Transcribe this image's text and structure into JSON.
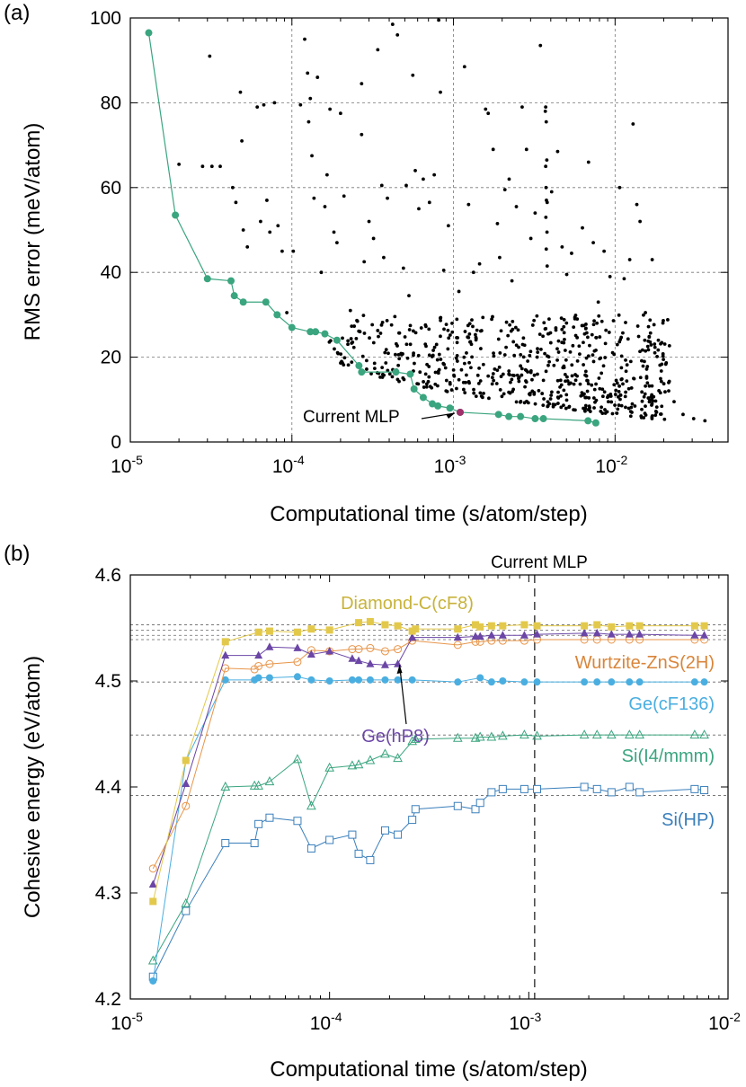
{
  "figure": {
    "panel_a_label": "(a)",
    "panel_b_label": "(b)"
  },
  "chart_data": [
    {
      "panel": "(a)",
      "type": "scatter",
      "xlabel": "Computational time (s/atom/step)",
      "ylabel": "RMS error (meV/atom)",
      "x_scale": "log",
      "xlim": [
        1e-05,
        0.05
      ],
      "ylim": [
        0,
        100
      ],
      "x_tick_labels": [
        {
          "base": "10",
          "exp": "-5"
        },
        {
          "base": "10",
          "exp": "-4"
        },
        {
          "base": "10",
          "exp": "-3"
        },
        {
          "base": "10",
          "exp": "-2"
        }
      ],
      "y_ticks": [
        "0",
        "20",
        "40",
        "60",
        "80",
        "100"
      ],
      "grid": true,
      "annotation": "Current MLP",
      "current_mlp": {
        "x": 0.0011,
        "y": 7.0
      },
      "pareto": [
        [
          1.3e-05,
          96.5
        ],
        [
          1.9e-05,
          53.5
        ],
        [
          3e-05,
          38.5
        ],
        [
          4.2e-05,
          38.0
        ],
        [
          4.4e-05,
          34.5
        ],
        [
          5e-05,
          33.0
        ],
        [
          6.9e-05,
          33.0
        ],
        [
          8.1e-05,
          30.0
        ],
        [
          0.0001,
          27.0
        ],
        [
          0.00013,
          26.0
        ],
        [
          0.00014,
          26.0
        ],
        [
          0.00016,
          25.5
        ],
        [
          0.00019,
          24.0
        ],
        [
          0.00026,
          18.0
        ],
        [
          0.00027,
          16.5
        ],
        [
          0.00044,
          16.5
        ],
        [
          0.00054,
          16.0
        ],
        [
          0.00057,
          12.5
        ],
        [
          0.00065,
          10.5
        ],
        [
          0.00074,
          9.0
        ],
        [
          0.0008,
          8.5
        ],
        [
          0.00095,
          8.0
        ],
        [
          0.0011,
          7.0
        ],
        [
          0.0019,
          6.5
        ],
        [
          0.0022,
          6.0
        ],
        [
          0.0026,
          6.0
        ],
        [
          0.0032,
          5.5
        ],
        [
          0.0036,
          5.5
        ],
        [
          0.0068,
          5.0
        ],
        [
          0.0076,
          4.5
        ]
      ],
      "cloud": {
        "sparse": [
          [
            2e-05,
            65.5
          ],
          [
            2.8e-05,
            65.0
          ],
          [
            3.2e-05,
            65.0
          ],
          [
            3.6e-05,
            65.0
          ],
          [
            3.1e-05,
            91.0
          ],
          [
            4.3e-05,
            60.0
          ],
          [
            4.5e-05,
            56.5
          ],
          [
            4.9e-05,
            71.0
          ],
          [
            4.8e-05,
            82.5
          ],
          [
            5e-05,
            50.0
          ],
          [
            5.3e-05,
            46.0
          ],
          [
            6.1e-05,
            79.0
          ],
          [
            6.4e-05,
            52.0
          ],
          [
            6.7e-05,
            79.5
          ],
          [
            7e-05,
            57.0
          ],
          [
            7.3e-05,
            49.5
          ],
          [
            7.8e-05,
            80.0
          ],
          [
            8.2e-05,
            51.0
          ],
          [
            8.7e-05,
            45.0
          ],
          [
            9.3e-05,
            30.5
          ],
          [
            0.000102,
            45.0
          ],
          [
            0.000113,
            79.5
          ],
          [
            0.00012,
            95.0
          ],
          [
            0.000125,
            87.0
          ],
          [
            0.000127,
            75.5
          ],
          [
            0.00013,
            81.0
          ],
          [
            0.000133,
            67.5
          ],
          [
            0.000137,
            57.5
          ],
          [
            0.000144,
            86.0
          ],
          [
            0.000152,
            40.0
          ],
          [
            0.00016,
            55.5
          ],
          [
            0.000165,
            63.0
          ],
          [
            0.000172,
            78.5
          ],
          [
            0.000182,
            49.5
          ],
          [
            0.00019,
            47.0
          ],
          [
            0.0002,
            77.5
          ],
          [
            0.00021,
            58.0
          ],
          [
            0.00023,
            31.0
          ],
          [
            0.00027,
            84.5
          ],
          [
            0.00027,
            72.5
          ],
          [
            0.00028,
            42.5
          ],
          [
            0.0003,
            52.0
          ],
          [
            0.00032,
            48.0
          ],
          [
            0.00034,
            92.5
          ],
          [
            0.00036,
            60.5
          ],
          [
            0.00037,
            43.5
          ],
          [
            0.00039,
            57.5
          ],
          [
            0.00042,
            98.5
          ],
          [
            0.00045,
            96.0
          ],
          [
            0.00049,
            41.0
          ],
          [
            0.00051,
            60.5
          ],
          [
            0.00053,
            34.5
          ],
          [
            0.00056,
            86.5
          ],
          [
            0.00058,
            64.0
          ],
          [
            0.00061,
            55.0
          ],
          [
            0.00065,
            62.0
          ],
          [
            0.00071,
            56.5
          ],
          [
            0.00076,
            63.0
          ],
          [
            0.00081,
            99.5
          ],
          [
            0.00083,
            82.5
          ],
          [
            0.00087,
            40.5
          ],
          [
            0.00093,
            51.0
          ],
          [
            0.00098,
            28.0
          ],
          [
            0.00108,
            35.5
          ],
          [
            0.00117,
            88.5
          ],
          [
            0.00124,
            56.0
          ],
          [
            0.00133,
            40.0
          ],
          [
            0.00145,
            42.0
          ],
          [
            0.00158,
            78.5
          ],
          [
            0.00164,
            77.5
          ],
          [
            0.00176,
            69.0
          ],
          [
            0.00187,
            51.5
          ],
          [
            0.00193,
            43.5
          ],
          [
            0.00208,
            59.5
          ],
          [
            0.00221,
            62.0
          ],
          [
            0.0023,
            38.0
          ],
          [
            0.00245,
            55.5
          ],
          [
            0.00266,
            79.0
          ],
          [
            0.00283,
            69.0
          ],
          [
            0.00301,
            48.0
          ],
          [
            0.0032,
            54.0
          ],
          [
            0.00345,
            93.5
          ],
          [
            0.00372,
            65.0
          ],
          [
            0.0038,
            56.5
          ],
          [
            0.00405,
            59.0
          ],
          [
            0.00441,
            68.5
          ],
          [
            0.0047,
            46.0
          ],
          [
            0.00502,
            39.5
          ],
          [
            0.00538,
            44.5
          ],
          [
            0.00583,
            29.0
          ],
          [
            0.00628,
            50.5
          ],
          [
            0.00685,
            66.0
          ],
          [
            0.00733,
            47.0
          ],
          [
            0.00787,
            33.0
          ],
          [
            0.00855,
            45.0
          ],
          [
            0.0093,
            39.0
          ],
          [
            0.01067,
            60.0
          ],
          [
            0.01138,
            38.5
          ],
          [
            0.01232,
            43.0
          ],
          [
            0.01292,
            75.0
          ],
          [
            0.01363,
            56.0
          ],
          [
            0.01427,
            52.0
          ],
          [
            0.01541,
            30.5
          ],
          [
            0.01697,
            43.0
          ],
          [
            0.01853,
            24.0
          ],
          [
            0.02146,
            14.0
          ],
          [
            0.02318,
            9.5
          ],
          [
            0.02634,
            6.5
          ],
          [
            0.03064,
            5.5
          ],
          [
            0.03597,
            5.0
          ],
          [
            0.00372,
            79.0
          ],
          [
            0.0037,
            78.0
          ],
          [
            0.00375,
            75.5
          ],
          [
            0.00378,
            66.5
          ],
          [
            0.00374,
            60.0
          ],
          [
            0.00376,
            57.0
          ],
          [
            0.00373,
            53.0
          ],
          [
            0.00379,
            49.5
          ],
          [
            0.00375,
            45.5
          ],
          [
            0.0038,
            41.5
          ]
        ],
        "dense_region": {
          "x_range": [
            0.00016,
            0.022
          ],
          "y_range": [
            4.5,
            30
          ]
        }
      }
    },
    {
      "panel": "(b)",
      "type": "line",
      "xlabel": "Computational time (s/atom/step)",
      "ylabel": "Cohesive energy (eV/atom)",
      "x_scale": "log",
      "xlim": [
        1e-05,
        0.01
      ],
      "ylim": [
        4.2,
        4.6
      ],
      "x_tick_labels": [
        {
          "base": "10",
          "exp": "-5"
        },
        {
          "base": "10",
          "exp": "-4"
        },
        {
          "base": "10",
          "exp": "-3"
        },
        {
          "base": "10",
          "exp": "-2"
        }
      ],
      "y_ticks": [
        "4.2",
        "4.3",
        "4.4",
        "4.5",
        "4.6"
      ],
      "grid": false,
      "annotation": "Current MLP",
      "current_mlp_x": 0.00107,
      "reference_lines": [
        4.553,
        4.548,
        4.543,
        4.539,
        4.499,
        4.449,
        4.392
      ],
      "series": [
        {
          "name": "Diamond-C(cF8)",
          "color": "#e3c94b",
          "label_color": "#c8b33a",
          "marker": "filled-square",
          "x": [
            1.3e-05,
            1.9e-05,
            3e-05,
            4.4e-05,
            5e-05,
            6.9e-05,
            8.1e-05,
            0.0001,
            0.00014,
            0.00016,
            0.00019,
            0.00022,
            0.00026,
            0.00027,
            0.00044,
            0.00054,
            0.00057,
            0.00065,
            0.00074,
            0.00095,
            0.0011,
            0.0019,
            0.0022,
            0.0026,
            0.0032,
            0.0036,
            0.0068,
            0.0076
          ],
          "y": [
            4.292,
            4.425,
            4.537,
            4.546,
            4.547,
            4.546,
            4.549,
            4.548,
            4.555,
            4.556,
            4.553,
            4.552,
            4.547,
            4.549,
            4.549,
            4.553,
            4.551,
            4.552,
            4.552,
            4.553,
            4.552,
            4.552,
            4.553,
            4.551,
            4.552,
            4.552,
            4.552,
            4.552
          ]
        },
        {
          "name": "Wurtzite-ZnS(2H)",
          "color": "#e8954a",
          "label_color": "#d9853a",
          "marker": "open-circle",
          "x": [
            1.3e-05,
            1.9e-05,
            3e-05,
            4.2e-05,
            4.4e-05,
            5e-05,
            6.9e-05,
            8.1e-05,
            0.0001,
            0.00013,
            0.00014,
            0.00016,
            0.00019,
            0.00022,
            0.00026,
            0.00044,
            0.00054,
            0.00057,
            0.00065,
            0.00074,
            0.00095,
            0.0011,
            0.0019,
            0.0022,
            0.0026,
            0.0032,
            0.0036,
            0.0068,
            0.0076
          ],
          "y": [
            4.323,
            4.382,
            4.512,
            4.511,
            4.514,
            4.516,
            4.518,
            4.529,
            4.528,
            4.53,
            4.53,
            4.531,
            4.528,
            4.53,
            4.538,
            4.534,
            4.537,
            4.537,
            4.538,
            4.538,
            4.538,
            4.539,
            4.539,
            4.539,
            4.539,
            4.539,
            4.539,
            4.539,
            4.539
          ]
        },
        {
          "name": "Ge(hP8)",
          "color": "#6b46a6",
          "label_color": "#6b46a6",
          "marker": "filled-triangle",
          "x": [
            1.3e-05,
            1.9e-05,
            3e-05,
            4.4e-05,
            5e-05,
            6.9e-05,
            8.1e-05,
            0.0001,
            0.00013,
            0.00014,
            0.00016,
            0.00019,
            0.00022,
            0.00026,
            0.00044,
            0.00054,
            0.00057,
            0.00065,
            0.00074,
            0.00095,
            0.0011,
            0.0019,
            0.0022,
            0.0026,
            0.0032,
            0.0036,
            0.0068,
            0.0076
          ],
          "y": [
            4.308,
            4.403,
            4.524,
            4.524,
            4.532,
            4.531,
            4.525,
            4.528,
            4.521,
            4.519,
            4.516,
            4.515,
            4.516,
            4.541,
            4.541,
            4.542,
            4.542,
            4.543,
            4.543,
            4.543,
            4.544,
            4.545,
            4.545,
            4.544,
            4.544,
            4.544,
            4.543,
            4.543
          ]
        },
        {
          "name": "Ge(cF136)",
          "color": "#4aaee0",
          "label_color": "#4aaee0",
          "marker": "filled-circle",
          "x": [
            1.3e-05,
            1.9e-05,
            3e-05,
            4.2e-05,
            4.4e-05,
            5e-05,
            6.9e-05,
            8.1e-05,
            0.0001,
            0.00013,
            0.00014,
            0.00016,
            0.00019,
            0.00022,
            0.00026,
            0.00044,
            0.00057,
            0.00065,
            0.00074,
            0.00095,
            0.0011,
            0.0019,
            0.0022,
            0.0026,
            0.0032,
            0.0036,
            0.0068,
            0.0076
          ],
          "y": [
            4.217,
            4.425,
            4.501,
            4.501,
            4.503,
            4.503,
            4.504,
            4.501,
            4.5,
            4.501,
            4.501,
            4.501,
            4.501,
            4.501,
            4.501,
            4.499,
            4.503,
            4.499,
            4.5,
            4.499,
            4.499,
            4.499,
            4.499,
            4.499,
            4.499,
            4.499,
            4.499,
            4.499
          ]
        },
        {
          "name": "Si(I4/mmm)",
          "color": "#3aa57f",
          "label_color": "#3aa57f",
          "marker": "open-triangle",
          "x": [
            1.3e-05,
            1.9e-05,
            3e-05,
            4.2e-05,
            4.4e-05,
            5e-05,
            6.9e-05,
            8.1e-05,
            0.0001,
            0.00013,
            0.00014,
            0.00016,
            0.00019,
            0.00022,
            0.00026,
            0.00027,
            0.00044,
            0.00054,
            0.00057,
            0.00065,
            0.00074,
            0.00095,
            0.0011,
            0.0019,
            0.0022,
            0.0026,
            0.0032,
            0.0036,
            0.0068,
            0.0076
          ],
          "y": [
            4.236,
            4.29,
            4.4,
            4.401,
            4.401,
            4.405,
            4.426,
            4.382,
            4.418,
            4.42,
            4.421,
            4.425,
            4.431,
            4.427,
            4.443,
            4.445,
            4.446,
            4.446,
            4.447,
            4.447,
            4.448,
            4.449,
            4.448,
            4.449,
            4.449,
            4.449,
            4.449,
            4.449,
            4.449,
            4.449
          ]
        },
        {
          "name": "Si(HP)",
          "color": "#3a7fbb",
          "label_color": "#3a7fbb",
          "marker": "open-square",
          "x": [
            1.3e-05,
            1.9e-05,
            3e-05,
            4.2e-05,
            4.4e-05,
            5e-05,
            6.9e-05,
            8.1e-05,
            0.0001,
            0.00013,
            0.00014,
            0.00016,
            0.00019,
            0.00022,
            0.00026,
            0.00027,
            0.00044,
            0.00054,
            0.00057,
            0.00065,
            0.00074,
            0.00095,
            0.0011,
            0.0019,
            0.0022,
            0.0026,
            0.0032,
            0.0036,
            0.0068,
            0.0076
          ],
          "y": [
            4.221,
            4.283,
            4.347,
            4.347,
            4.365,
            4.371,
            4.368,
            4.342,
            4.35,
            4.355,
            4.337,
            4.331,
            4.359,
            4.355,
            4.369,
            4.379,
            4.382,
            4.379,
            4.385,
            4.395,
            4.398,
            4.398,
            4.398,
            4.4,
            4.398,
            4.395,
            4.4,
            4.395,
            4.398,
            4.397
          ]
        }
      ]
    }
  ]
}
